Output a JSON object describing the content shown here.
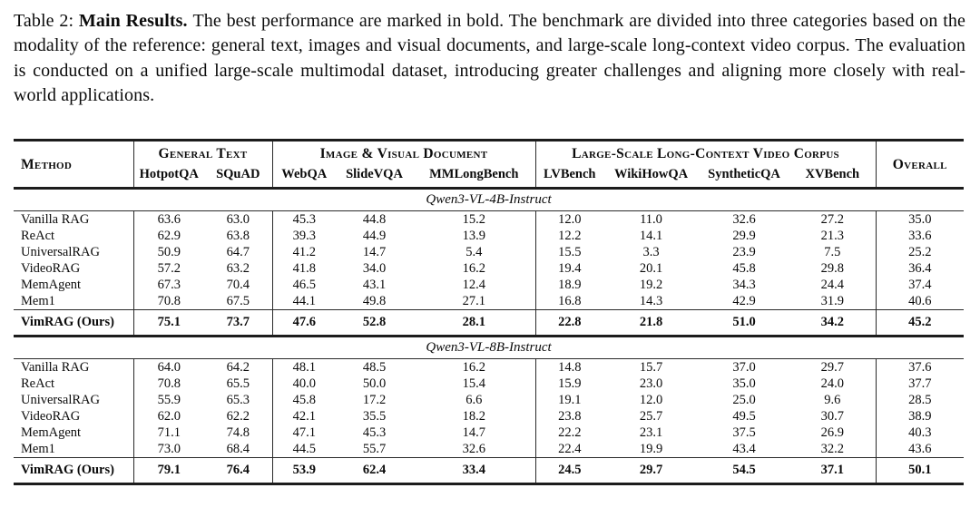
{
  "caption": {
    "label": "Table 2:",
    "bold": "Main Results.",
    "text": "The best performance are marked in bold. The benchmark are divided into three categories based on the modality of the reference: general text, images and visual documents, and large-scale long-context video corpus. The evaluation is conducted on a unified large-scale multimodal dataset, introducing greater challenges and aligning more closely with real-world applications."
  },
  "table": {
    "method_header": "Method",
    "overall_header": "Overall",
    "groups": [
      {
        "label": "General Text",
        "cols": [
          "HotpotQA",
          "SQuAD"
        ]
      },
      {
        "label": "Image & Visual Document",
        "cols": [
          "WebQA",
          "SlideVQA",
          "MMLongBench"
        ]
      },
      {
        "label": "Large-Scale Long-Context Video Corpus",
        "cols": [
          "LVBench",
          "WikiHowQA",
          "SyntheticQA",
          "XVBench"
        ]
      }
    ],
    "sections": [
      {
        "title": "Qwen3-VL-4B-Instruct",
        "rows": [
          {
            "method": "Vanilla RAG",
            "values": [
              "63.6",
              "63.0",
              "45.3",
              "44.8",
              "15.2",
              "12.0",
              "11.0",
              "32.6",
              "27.2",
              "35.0"
            ]
          },
          {
            "method": "ReAct",
            "values": [
              "62.9",
              "63.8",
              "39.3",
              "44.9",
              "13.9",
              "12.2",
              "14.1",
              "29.9",
              "21.3",
              "33.6"
            ]
          },
          {
            "method": "UniversalRAG",
            "values": [
              "50.9",
              "64.7",
              "41.2",
              "14.7",
              "5.4",
              "15.5",
              "3.3",
              "23.9",
              "7.5",
              "25.2"
            ]
          },
          {
            "method": "VideoRAG",
            "values": [
              "57.2",
              "63.2",
              "41.8",
              "34.0",
              "16.2",
              "19.4",
              "20.1",
              "45.8",
              "29.8",
              "36.4"
            ]
          },
          {
            "method": "MemAgent",
            "values": [
              "67.3",
              "70.4",
              "46.5",
              "43.1",
              "12.4",
              "18.9",
              "19.2",
              "34.3",
              "24.4",
              "37.4"
            ]
          },
          {
            "method": "Mem1",
            "values": [
              "70.8",
              "67.5",
              "44.1",
              "49.8",
              "27.1",
              "16.8",
              "14.3",
              "42.9",
              "31.9",
              "40.6"
            ]
          }
        ],
        "ours": {
          "method": "VimRAG (Ours)",
          "values": [
            "75.1",
            "73.7",
            "47.6",
            "52.8",
            "28.1",
            "22.8",
            "21.8",
            "51.0",
            "34.2",
            "45.2"
          ]
        }
      },
      {
        "title": "Qwen3-VL-8B-Instruct",
        "rows": [
          {
            "method": "Vanilla RAG",
            "values": [
              "64.0",
              "64.2",
              "48.1",
              "48.5",
              "16.2",
              "14.8",
              "15.7",
              "37.0",
              "29.7",
              "37.6"
            ]
          },
          {
            "method": "ReAct",
            "values": [
              "70.8",
              "65.5",
              "40.0",
              "50.0",
              "15.4",
              "15.9",
              "23.0",
              "35.0",
              "24.0",
              "37.7"
            ]
          },
          {
            "method": "UniversalRAG",
            "values": [
              "55.9",
              "65.3",
              "45.8",
              "17.2",
              "6.6",
              "19.1",
              "12.0",
              "25.0",
              "9.6",
              "28.5"
            ]
          },
          {
            "method": "VideoRAG",
            "values": [
              "62.0",
              "62.2",
              "42.1",
              "35.5",
              "18.2",
              "23.8",
              "25.7",
              "49.5",
              "30.7",
              "38.9"
            ]
          },
          {
            "method": "MemAgent",
            "values": [
              "71.1",
              "74.8",
              "47.1",
              "45.3",
              "14.7",
              "22.2",
              "23.1",
              "37.5",
              "26.9",
              "40.3"
            ]
          },
          {
            "method": "Mem1",
            "values": [
              "73.0",
              "68.4",
              "44.5",
              "55.7",
              "32.6",
              "22.4",
              "19.9",
              "43.4",
              "32.2",
              "43.6"
            ]
          }
        ],
        "ours": {
          "method": "VimRAG (Ours)",
          "values": [
            "79.1",
            "76.4",
            "53.9",
            "62.4",
            "33.4",
            "24.5",
            "29.7",
            "54.5",
            "37.1",
            "50.1"
          ]
        }
      }
    ]
  }
}
